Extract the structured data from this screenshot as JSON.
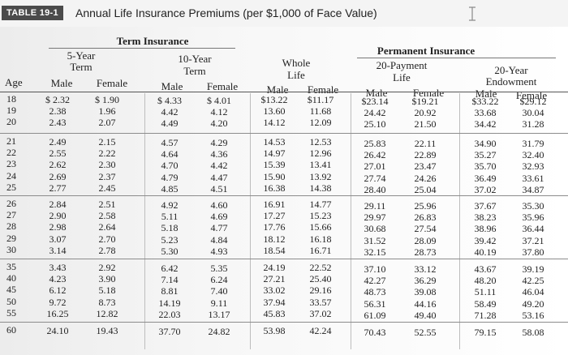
{
  "header": {
    "tag": "TABLE 19-1",
    "title": "Annual Life Insurance Premiums (per $1,000 of Face Value)"
  },
  "groups": {
    "term": "Term Insurance",
    "term5": [
      "5-Year",
      "Term"
    ],
    "term10": [
      "10-Year",
      "Term"
    ],
    "whole": [
      "Whole",
      "Life"
    ],
    "permanent": "Permanent Insurance",
    "pay20": [
      "20-Payment",
      "Life"
    ],
    "endow20": [
      "20-Year",
      "Endowment"
    ]
  },
  "columns": {
    "age": "Age",
    "male": "Male",
    "female": "Female"
  },
  "blocks": [
    {
      "ages": [
        "18",
        "19",
        "20"
      ],
      "t5m": [
        "$ 2.32",
        "2.38",
        "2.43"
      ],
      "t5f": [
        "$ 1.90",
        "1.96",
        "2.07"
      ],
      "t10m": [
        "$ 4.33",
        "4.42",
        "4.49"
      ],
      "t10f": [
        "$ 4.01",
        "4.12",
        "4.20"
      ],
      "wlm": [
        "$13.22",
        "13.60",
        "14.12"
      ],
      "wlf": [
        "$11.17",
        "11.68",
        "12.09"
      ],
      "p20m": [
        "$23.14",
        "24.42",
        "25.10"
      ],
      "p20f": [
        "$19.21",
        "20.92",
        "21.50"
      ],
      "e20m": [
        "$33.22",
        "33.68",
        "34.42"
      ],
      "e20f": [
        "$29.12",
        "30.04",
        "31.28"
      ]
    },
    {
      "ages": [
        "21",
        "22",
        "23",
        "24",
        "25"
      ],
      "t5m": [
        "2.49",
        "2.55",
        "2.62",
        "2.69",
        "2.77"
      ],
      "t5f": [
        "2.15",
        "2.22",
        "2.30",
        "2.37",
        "2.45"
      ],
      "t10m": [
        "4.57",
        "4.64",
        "4.70",
        "4.79",
        "4.85"
      ],
      "t10f": [
        "4.29",
        "4.36",
        "4.42",
        "4.47",
        "4.51"
      ],
      "wlm": [
        "14.53",
        "14.97",
        "15.39",
        "15.90",
        "16.38"
      ],
      "wlf": [
        "12.53",
        "12.96",
        "13.41",
        "13.92",
        "14.38"
      ],
      "p20m": [
        "25.83",
        "26.42",
        "27.01",
        "27.74",
        "28.40"
      ],
      "p20f": [
        "22.11",
        "22.89",
        "23.47",
        "24.26",
        "25.04"
      ],
      "e20m": [
        "34.90",
        "35.27",
        "35.70",
        "36.49",
        "37.02"
      ],
      "e20f": [
        "31.79",
        "32.40",
        "32.93",
        "33.61",
        "34.87"
      ]
    },
    {
      "ages": [
        "26",
        "27",
        "28",
        "29",
        "30"
      ],
      "t5m": [
        "2.84",
        "2.90",
        "2.98",
        "3.07",
        "3.14"
      ],
      "t5f": [
        "2.51",
        "2.58",
        "2.64",
        "2.70",
        "2.78"
      ],
      "t10m": [
        "4.92",
        "5.11",
        "5.18",
        "5.23",
        "5.30"
      ],
      "t10f": [
        "4.60",
        "4.69",
        "4.77",
        "4.84",
        "4.93"
      ],
      "wlm": [
        "16.91",
        "17.27",
        "17.76",
        "18.12",
        "18.54"
      ],
      "wlf": [
        "14.77",
        "15.23",
        "15.66",
        "16.18",
        "16.71"
      ],
      "p20m": [
        "29.11",
        "29.97",
        "30.68",
        "31.52",
        "32.15"
      ],
      "p20f": [
        "25.96",
        "26.83",
        "27.54",
        "28.09",
        "28.73"
      ],
      "e20m": [
        "37.67",
        "38.23",
        "38.96",
        "39.42",
        "40.19"
      ],
      "e20f": [
        "35.30",
        "35.96",
        "36.44",
        "37.21",
        "37.80"
      ]
    },
    {
      "ages": [
        "35",
        "40",
        "45",
        "50",
        "55"
      ],
      "t5m": [
        "3.43",
        "4.23",
        "6.12",
        "9.72",
        "16.25"
      ],
      "t5f": [
        "2.92",
        "3.90",
        "5.18",
        "8.73",
        "12.82"
      ],
      "t10m": [
        "6.42",
        "7.14",
        "8.81",
        "14.19",
        "22.03"
      ],
      "t10f": [
        "5.35",
        "6.24",
        "7.40",
        "9.11",
        "13.17"
      ],
      "wlm": [
        "24.19",
        "27.21",
        "33.02",
        "37.94",
        "45.83"
      ],
      "wlf": [
        "22.52",
        "25.40",
        "29.16",
        "33.57",
        "37.02"
      ],
      "p20m": [
        "37.10",
        "42.27",
        "48.73",
        "56.31",
        "61.09"
      ],
      "p20f": [
        "33.12",
        "36.29",
        "39.08",
        "44.16",
        "49.40"
      ],
      "e20m": [
        "43.67",
        "48.20",
        "51.11",
        "58.49",
        "71.28"
      ],
      "e20f": [
        "39.19",
        "42.25",
        "46.04",
        "49.20",
        "53.16"
      ]
    },
    {
      "ages": [
        "60"
      ],
      "t5m": [
        "24.10"
      ],
      "t5f": [
        "19.43"
      ],
      "t10m": [
        "37.70"
      ],
      "t10f": [
        "24.82"
      ],
      "wlm": [
        "53.98"
      ],
      "wlf": [
        "42.24"
      ],
      "p20m": [
        "70.43"
      ],
      "p20f": [
        "52.55"
      ],
      "e20m": [
        "79.15"
      ],
      "e20f": [
        "58.08"
      ]
    }
  ]
}
